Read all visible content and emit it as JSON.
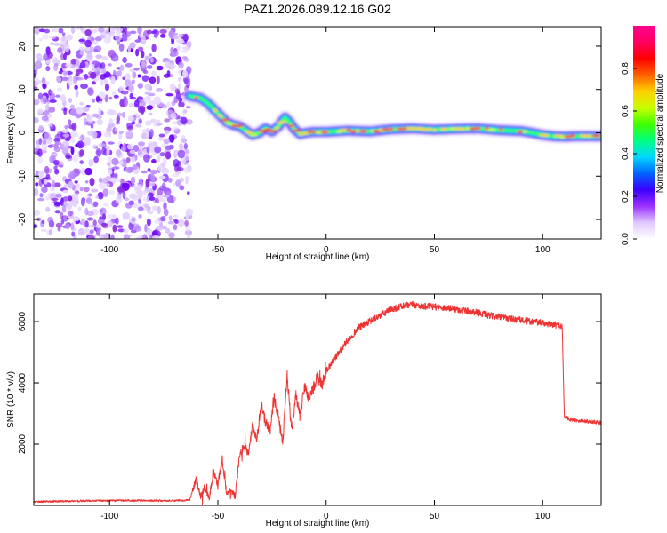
{
  "title": "PAZ1.2026.089.12.16.G02",
  "chart_data": [
    {
      "type": "heatmap",
      "name": "spectrogram",
      "xlabel": "Height of straight line (km)",
      "ylabel": "Frequency (Hz)",
      "xlim": [
        -135,
        127
      ],
      "ylim": [
        -24.5,
        24.5
      ],
      "xticks": [
        -100,
        -50,
        0,
        50,
        100
      ],
      "yticks": [
        -20,
        -10,
        0,
        10,
        20
      ],
      "noise_region_x": [
        -135,
        -63
      ],
      "ridge": {
        "x": [
          -63,
          -58,
          -55,
          -52,
          -49,
          -46,
          -43,
          -40,
          -37,
          -34,
          -31,
          -28,
          -25,
          -22,
          -19,
          -17,
          -15,
          -12,
          -9,
          -6,
          0,
          10,
          20,
          30,
          40,
          50,
          60,
          70,
          80,
          90,
          95,
          100,
          105,
          110,
          115,
          120,
          127
        ],
        "y": [
          8.5,
          8,
          7,
          5.5,
          4,
          2.5,
          1.8,
          1.5,
          0.5,
          -0.5,
          0,
          1,
          0.3,
          1.5,
          3.5,
          2.5,
          1,
          -0.3,
          0,
          0.2,
          0.2,
          0.5,
          0.3,
          0.8,
          1.0,
          0.7,
          0.9,
          1.0,
          0.6,
          0.4,
          0.0,
          -0.5,
          -0.8,
          -0.9,
          -0.8,
          -0.8,
          -0.8
        ]
      },
      "colorbar": {
        "label": "Normalized spectral amplitude",
        "ticks": [
          "0.0",
          "0.2",
          "0.4",
          "0.6",
          "0.8"
        ],
        "range": [
          0,
          1
        ],
        "colors": [
          "#ffffff",
          "#e0c8ff",
          "#9b30ff",
          "#3a00ff",
          "#0064ff",
          "#00d8ff",
          "#00ff80",
          "#40ff00",
          "#c8ff00",
          "#ffd000",
          "#ff6000",
          "#ff0000",
          "#ff0060",
          "#ff0090"
        ]
      }
    },
    {
      "type": "line",
      "name": "snr",
      "xlabel": "Height of straight line (km)",
      "ylabel": "SNR (10 * v/v)",
      "xlim": [
        -135,
        127
      ],
      "ylim": [
        0,
        6900
      ],
      "xticks": [
        -100,
        -50,
        0,
        50,
        100
      ],
      "yticks": [
        2000,
        4000,
        6000
      ],
      "color": "#ee3333",
      "series": [
        {
          "name": "SNR",
          "x": [
            -135,
            -110,
            -90,
            -70,
            -63,
            -60,
            -58,
            -56,
            -54,
            -52,
            -50,
            -48,
            -46,
            -44,
            -42,
            -40,
            -38,
            -36,
            -34,
            -32,
            -30,
            -28,
            -26,
            -24,
            -22,
            -20,
            -18,
            -16,
            -14,
            -12,
            -10,
            -8,
            -6,
            -4,
            -2,
            0,
            5,
            10,
            15,
            20,
            25,
            30,
            35,
            40,
            45,
            50,
            55,
            60,
            65,
            70,
            75,
            80,
            85,
            90,
            95,
            100,
            105,
            109,
            110,
            113,
            120,
            127
          ],
          "y": [
            120,
            150,
            160,
            150,
            180,
            850,
            300,
            600,
            250,
            1100,
            700,
            1500,
            400,
            500,
            300,
            1600,
            2000,
            1700,
            2600,
            2200,
            3300,
            2700,
            2500,
            3500,
            2800,
            2100,
            4300,
            2400,
            3600,
            2900,
            3900,
            3500,
            3800,
            4200,
            3900,
            4400,
            4900,
            5400,
            5800,
            6000,
            6200,
            6400,
            6500,
            6550,
            6500,
            6480,
            6450,
            6400,
            6350,
            6300,
            6200,
            6150,
            6100,
            6050,
            6000,
            5950,
            5900,
            5850,
            2900,
            2800,
            2750,
            2700
          ]
        }
      ]
    }
  ]
}
